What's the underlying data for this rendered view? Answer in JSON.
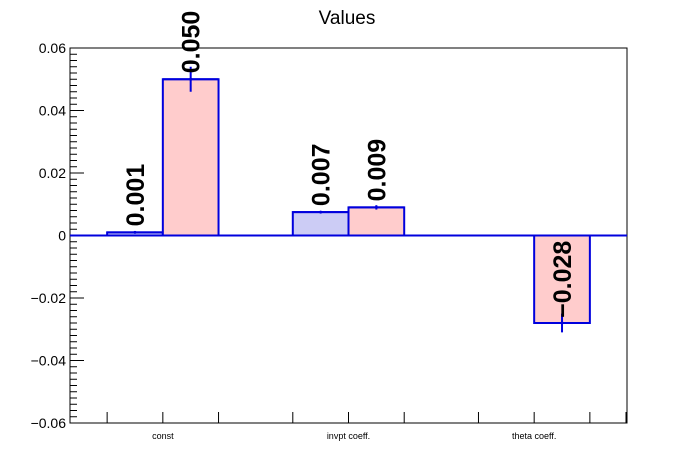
{
  "chart_data": {
    "type": "bar",
    "title": "Values",
    "xlabel": "",
    "ylabel": "",
    "ylim": [
      -0.06,
      0.06
    ],
    "y_ticks": [
      "0.06",
      "0.04",
      "0.02",
      "0",
      "−0.02",
      "−0.04",
      "−0.06"
    ],
    "y_tick_values": [
      0.06,
      0.04,
      0.02,
      0,
      -0.02,
      -0.04,
      -0.06
    ],
    "categories": [
      "const",
      "invpt coeff.",
      "theta coeff."
    ],
    "series": [
      {
        "fill": "#ccccf5",
        "stroke": "#0000dd",
        "values": [
          0.001,
          0.0075,
          null
        ],
        "errors": [
          0,
          0,
          null
        ],
        "labels": [
          "0.001",
          "0.007",
          ""
        ]
      },
      {
        "fill": "#ffcccc",
        "stroke": "#0000dd",
        "values": [
          0.05,
          0.009,
          -0.028
        ],
        "errors": [
          0.004,
          0.0007,
          0.003
        ],
        "labels": [
          "0.050",
          "0.009",
          "−0.028"
        ]
      }
    ],
    "grid": false,
    "legend": "none",
    "colors": {
      "axis": "#000000",
      "zero_line": "#0000dd"
    }
  }
}
